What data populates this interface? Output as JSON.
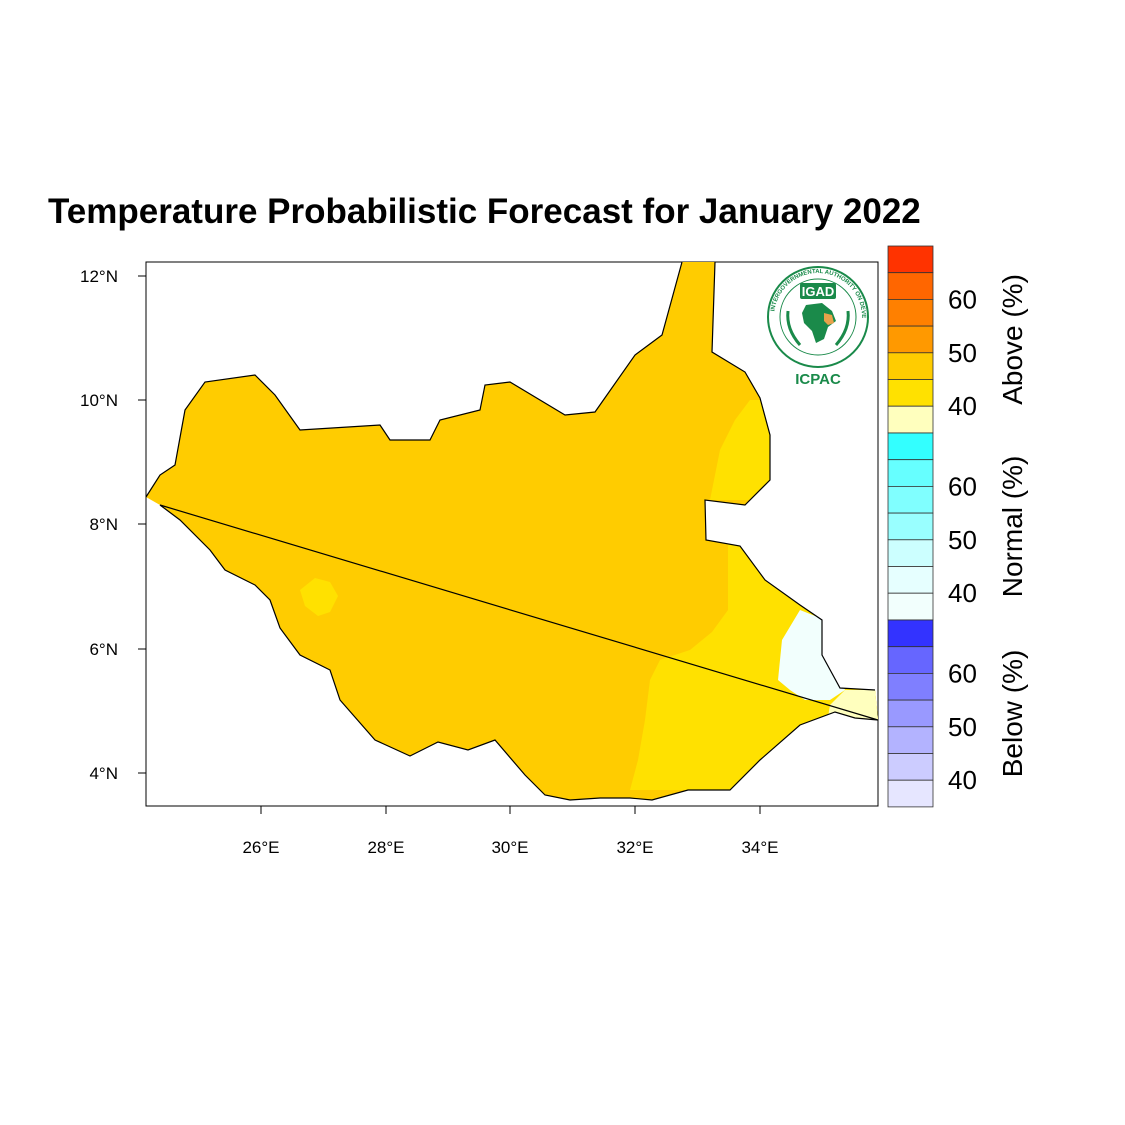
{
  "title": "Temperature Probabilistic Forecast for January 2022",
  "map": {
    "lat_ticks": [
      "12°N",
      "10°N",
      "8°N",
      "6°N",
      "4°N"
    ],
    "lon_ticks": [
      "26°E",
      "28°E",
      "30°E",
      "32°E",
      "34°E"
    ],
    "categories": [
      {
        "name": "Above (%)",
        "labels": [
          "60",
          "50",
          "40"
        ],
        "colors": [
          "#ff3300",
          "#ff6600",
          "#ff8000",
          "#ff9900",
          "#ffcc00",
          "#ffe100",
          "#ffffbe"
        ]
      },
      {
        "name": "Normal (%)",
        "labels": [
          "60",
          "50",
          "40"
        ],
        "colors": [
          "#33ffff",
          "#66ffff",
          "#80ffff",
          "#99ffff",
          "#ccffff",
          "#e6ffff",
          "#f2fffd"
        ]
      },
      {
        "name": "Below (%)",
        "labels": [
          "60",
          "50",
          "40"
        ],
        "colors": [
          "#3333ff",
          "#6666ff",
          "#7f7fff",
          "#9999ff",
          "#b3b3ff",
          "#ccccff",
          "#e6e6ff"
        ]
      }
    ],
    "regions": [
      {
        "category": "Above",
        "color": "#ffcc00"
      },
      {
        "category": "Above",
        "color": "#ffe100"
      },
      {
        "category": "Normal",
        "color": "#f2fffd"
      },
      {
        "category": "Above",
        "color": "#ffffbe"
      }
    ]
  },
  "logo": {
    "name": "IGAD",
    "org": "ICPAC",
    "ring_text": "INTERGOVERNMENTAL AUTHORITY ON DEVELOPMENT"
  }
}
